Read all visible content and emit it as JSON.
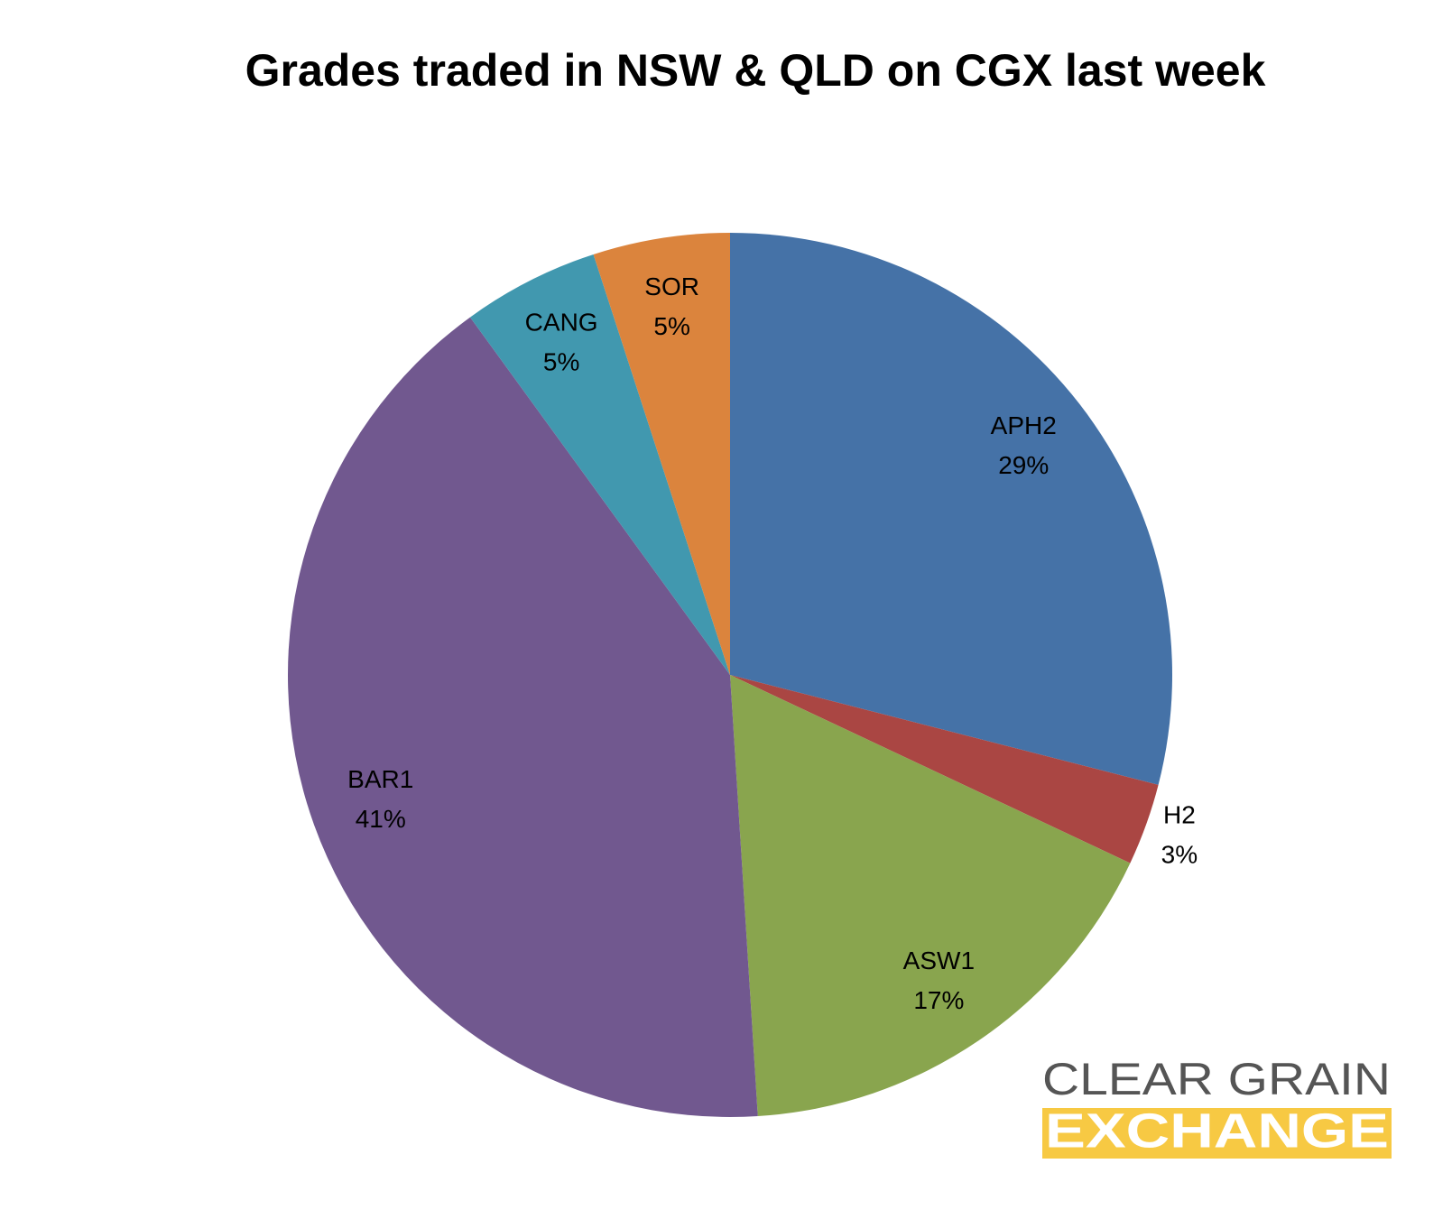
{
  "chart_data": {
    "type": "pie",
    "title": "Grades traded in NSW & QLD on CGX last week",
    "categories": [
      "APH2",
      "H2",
      "ASW1",
      "BAR1",
      "CANG",
      "SOR"
    ],
    "values": [
      29,
      3,
      17,
      41,
      5,
      5
    ],
    "value_labels": [
      "29%",
      "3%",
      "17%",
      "41%",
      "5%",
      "5%"
    ],
    "colors": [
      "#4572a7",
      "#aa4643",
      "#89a54e",
      "#71588f",
      "#4198af",
      "#db843d"
    ]
  },
  "logo": {
    "line1": "CLEAR GRAIN",
    "line2": "EXCHANGE"
  }
}
